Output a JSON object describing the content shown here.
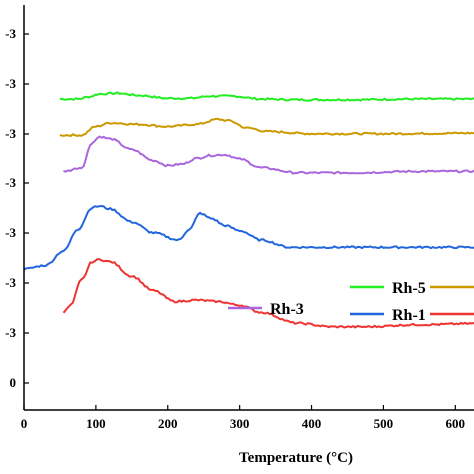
{
  "chart_data": {
    "type": "line",
    "title": "",
    "xlabel": "Temperature (°C)",
    "ylabel": "",
    "xlim": [
      0,
      650
    ],
    "x_ticks": [
      0,
      100,
      200,
      300,
      400,
      500,
      600
    ],
    "y_tick_labels": [
      "0",
      "-3",
      "-3",
      "-3",
      "-3",
      "-3",
      "-3",
      "-3",
      "-3"
    ],
    "grid": false,
    "legend_placement": "bottom-right",
    "series": [
      {
        "name": "Rh-5",
        "color": "#22ee22",
        "x": [
          50,
          75,
          90,
          105,
          130,
          160,
          200,
          230,
          260,
          290,
          330,
          380,
          450,
          550,
          650
        ],
        "y": [
          -1.5,
          -1.5,
          -1.47,
          -1.43,
          -1.42,
          -1.45,
          -1.49,
          -1.49,
          -1.46,
          -1.46,
          -1.5,
          -1.51,
          -1.51,
          -1.5,
          -1.5
        ]
      },
      {
        "name": "",
        "color": "#cc9900",
        "x": [
          50,
          80,
          100,
          120,
          160,
          200,
          240,
          270,
          285,
          310,
          340,
          400,
          500,
          650
        ],
        "y": [
          -2.0,
          -2.0,
          -1.88,
          -1.83,
          -1.85,
          -1.88,
          -1.85,
          -1.78,
          -1.8,
          -1.9,
          -1.95,
          -1.98,
          -1.98,
          -1.97
        ]
      },
      {
        "name": "Rh-3",
        "color": "#aa66dd",
        "x": [
          55,
          80,
          95,
          105,
          120,
          150,
          180,
          200,
          220,
          240,
          260,
          280,
          300,
          330,
          380,
          450,
          550,
          650
        ],
        "y": [
          -2.5,
          -2.45,
          -2.1,
          -2.02,
          -2.05,
          -2.2,
          -2.35,
          -2.42,
          -2.4,
          -2.32,
          -2.28,
          -2.27,
          -2.33,
          -2.45,
          -2.52,
          -2.52,
          -2.5,
          -2.5
        ]
      },
      {
        "name": "Rh-1",
        "color": "#2266dd",
        "x": [
          0,
          30,
          55,
          75,
          95,
          105,
          120,
          150,
          180,
          215,
          230,
          245,
          260,
          280,
          300,
          330,
          370,
          420,
          500,
          650
        ],
        "y": [
          -3.85,
          -3.8,
          -3.6,
          -3.3,
          -3.0,
          -2.98,
          -3.02,
          -3.2,
          -3.35,
          -3.45,
          -3.3,
          -3.08,
          -3.15,
          -3.25,
          -3.32,
          -3.45,
          -3.55,
          -3.55,
          -3.55,
          -3.55
        ]
      },
      {
        "name": "",
        "color": "#ee3333",
        "x": [
          55,
          65,
          80,
          95,
          105,
          120,
          150,
          180,
          210,
          240,
          270,
          300,
          330,
          380,
          430,
          470,
          550,
          650
        ],
        "y": [
          -4.45,
          -4.35,
          -4.0,
          -3.75,
          -3.72,
          -3.75,
          -3.95,
          -4.15,
          -4.3,
          -4.28,
          -4.3,
          -4.35,
          -4.45,
          -4.6,
          -4.65,
          -4.65,
          -4.62,
          -4.6
        ]
      }
    ]
  }
}
